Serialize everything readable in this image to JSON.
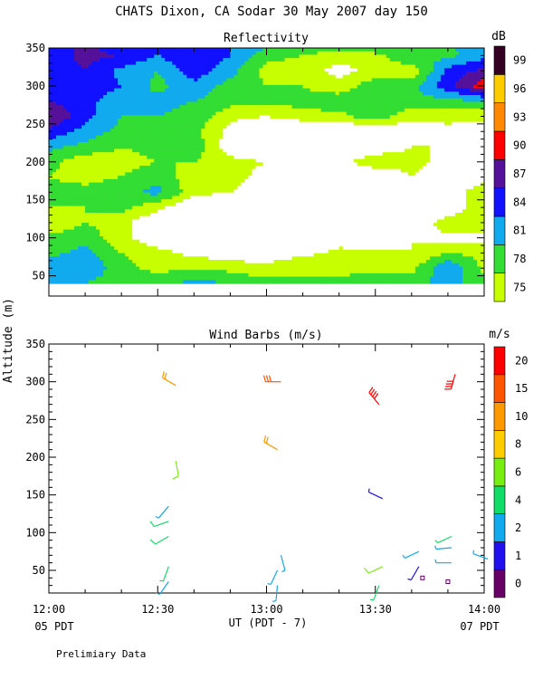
{
  "figure": {
    "title": "CHATS Dixon, CA  Sodar  30 May 2007  day 150",
    "ylabel": "Altitude (m)",
    "xlabel": "UT  (PDT - 7)",
    "x_ticks": [
      "12:00",
      "12:30",
      "13:00",
      "13:30",
      "14:00"
    ],
    "pdt_left": "05 PDT",
    "pdt_right": "07 PDT",
    "footer": "Prelimiary Data"
  },
  "chart_data": [
    {
      "type": "heatmap",
      "title": "Reflectivity",
      "colorbar_title": "dB",
      "x": {
        "start": "12:00",
        "end": "14:00",
        "ticks": [
          "12:00",
          "12:30",
          "13:00",
          "13:30",
          "14:00"
        ]
      },
      "ylim": [
        40,
        350
      ],
      "y_ticks": [
        50,
        100,
        150,
        200,
        250,
        300,
        350
      ],
      "levels": [
        75,
        78,
        81,
        84,
        87,
        90,
        93,
        96,
        99
      ],
      "level_colors": [
        "#c8ff00",
        "#33dd33",
        "#11aaee",
        "#1111ff",
        "#551199",
        "#ff0000",
        "#ff8800",
        "#ffcc00",
        "#330022"
      ],
      "color_below_first_level": "#ffffff",
      "times_min": [
        0,
        10,
        20,
        30,
        40,
        50,
        60,
        70,
        80,
        90,
        100,
        110,
        120
      ],
      "heights_m": [
        40,
        60,
        80,
        100,
        120,
        140,
        160,
        180,
        200,
        220,
        240,
        260,
        280,
        300,
        320,
        340,
        350
      ],
      "values_db": [
        [
          82,
          81,
          79,
          80,
          82,
          81,
          79,
          78,
          79,
          81,
          80,
          82,
          79
        ],
        [
          83,
          84,
          79,
          77,
          78,
          77,
          76,
          78,
          77,
          76,
          77,
          84,
          77
        ],
        [
          80,
          82,
          78,
          76,
          74,
          73,
          73,
          74,
          76,
          76,
          75,
          78,
          77
        ],
        [
          79,
          80,
          76,
          73,
          74,
          70,
          70,
          71,
          73,
          72,
          75,
          74,
          74
        ],
        [
          75,
          78,
          76,
          72,
          69,
          70,
          67,
          69,
          70,
          70,
          72,
          77,
          78
        ],
        [
          78,
          78,
          79,
          76,
          72,
          71,
          69,
          72,
          70,
          69,
          70,
          72,
          78
        ],
        [
          79,
          79,
          80,
          82,
          76,
          75,
          74,
          73,
          73,
          74,
          72,
          73,
          77
        ],
        [
          78,
          77,
          78,
          80,
          76,
          76,
          74,
          72,
          71,
          72,
          75,
          72,
          74
        ],
        [
          79,
          76,
          77,
          78,
          78,
          76,
          75,
          75,
          74,
          77,
          76,
          74,
          72
        ],
        [
          82,
          80,
          78,
          79,
          80,
          73,
          71,
          72,
          72,
          73,
          75,
          75,
          73
        ],
        [
          86,
          83,
          80,
          80,
          79,
          74,
          69,
          70,
          72,
          71,
          73,
          74,
          73
        ],
        [
          90,
          85,
          81,
          81,
          80,
          76,
          75,
          77,
          77,
          80,
          76,
          76,
          76
        ],
        [
          87,
          85,
          82,
          82,
          81,
          79,
          79,
          79,
          80,
          80,
          80,
          80,
          81
        ],
        [
          86,
          86,
          84,
          80,
          83,
          80,
          78,
          78,
          76,
          80,
          80,
          86,
          92
        ],
        [
          85,
          87,
          83,
          81,
          86,
          82,
          77,
          76,
          74,
          76,
          76,
          85,
          88
        ],
        [
          85,
          88,
          87,
          84,
          87,
          84,
          79,
          78,
          76,
          77,
          81,
          80,
          83
        ],
        [
          84,
          88,
          85,
          84,
          87,
          84,
          81,
          80,
          79,
          80,
          81,
          81,
          82
        ]
      ]
    },
    {
      "type": "scatter",
      "title": "Wind Barbs (m/s)",
      "colorbar_title": "m/s",
      "x": {
        "start": "12:00",
        "end": "14:00",
        "ticks": [
          "12:00",
          "12:30",
          "13:00",
          "13:30",
          "14:00"
        ]
      },
      "ylim": [
        20,
        350
      ],
      "y_ticks": [
        50,
        100,
        150,
        200,
        250,
        300,
        350
      ],
      "color_levels": [
        0,
        1,
        2,
        4,
        6,
        8,
        10,
        15,
        20
      ],
      "level_colors": [
        "#660066",
        "#2211ee",
        "#11aaee",
        "#11dd66",
        "#77ee11",
        "#ffcc00",
        "#ff9900",
        "#ff5500",
        "#ff0000"
      ],
      "barbs": [
        {
          "time_min": 33,
          "height_m": 35,
          "speed": 3,
          "dir": 215
        },
        {
          "time_min": 33,
          "height_m": 55,
          "speed": 4,
          "dir": 200
        },
        {
          "time_min": 33,
          "height_m": 95,
          "speed": 5,
          "dir": 240
        },
        {
          "time_min": 33,
          "height_m": 115,
          "speed": 5,
          "dir": 250
        },
        {
          "time_min": 33,
          "height_m": 135,
          "speed": 3,
          "dir": 220
        },
        {
          "time_min": 35,
          "height_m": 195,
          "speed": 6,
          "dir": 170
        },
        {
          "time_min": 35,
          "height_m": 295,
          "speed": 10,
          "dir": 300
        },
        {
          "time_min": 63,
          "height_m": 30,
          "speed": 3,
          "dir": 185
        },
        {
          "time_min": 63,
          "height_m": 50,
          "speed": 3,
          "dir": 205
        },
        {
          "time_min": 64,
          "height_m": 70,
          "speed": 2,
          "dir": 165
        },
        {
          "time_min": 63,
          "height_m": 210,
          "speed": 10,
          "dir": 300
        },
        {
          "time_min": 64,
          "height_m": 300,
          "speed": 15,
          "dir": 270
        },
        {
          "time_min": 91,
          "height_m": 30,
          "speed": 4,
          "dir": 200
        },
        {
          "time_min": 92,
          "height_m": 55,
          "speed": 6,
          "dir": 245
        },
        {
          "time_min": 92,
          "height_m": 145,
          "speed": 1,
          "dir": 295
        },
        {
          "time_min": 91,
          "height_m": 270,
          "speed": 20,
          "dir": 320
        },
        {
          "time_min": 102,
          "height_m": 55,
          "speed": 1,
          "dir": 210
        },
        {
          "time_min": 103,
          "height_m": 40,
          "speed": 0,
          "dir": 0
        },
        {
          "time_min": 102,
          "height_m": 75,
          "speed": 2,
          "dir": 245
        },
        {
          "time_min": 110,
          "height_m": 35,
          "speed": 0,
          "dir": 225
        },
        {
          "time_min": 111,
          "height_m": 60,
          "speed": 2,
          "dir": 270
        },
        {
          "time_min": 111,
          "height_m": 80,
          "speed": 2,
          "dir": 265
        },
        {
          "time_min": 111,
          "height_m": 95,
          "speed": 4,
          "dir": 245
        },
        {
          "time_min": 112,
          "height_m": 310,
          "speed": 20,
          "dir": 195
        },
        {
          "time_min": 121,
          "height_m": 65,
          "speed": 2,
          "dir": 290
        }
      ]
    }
  ]
}
